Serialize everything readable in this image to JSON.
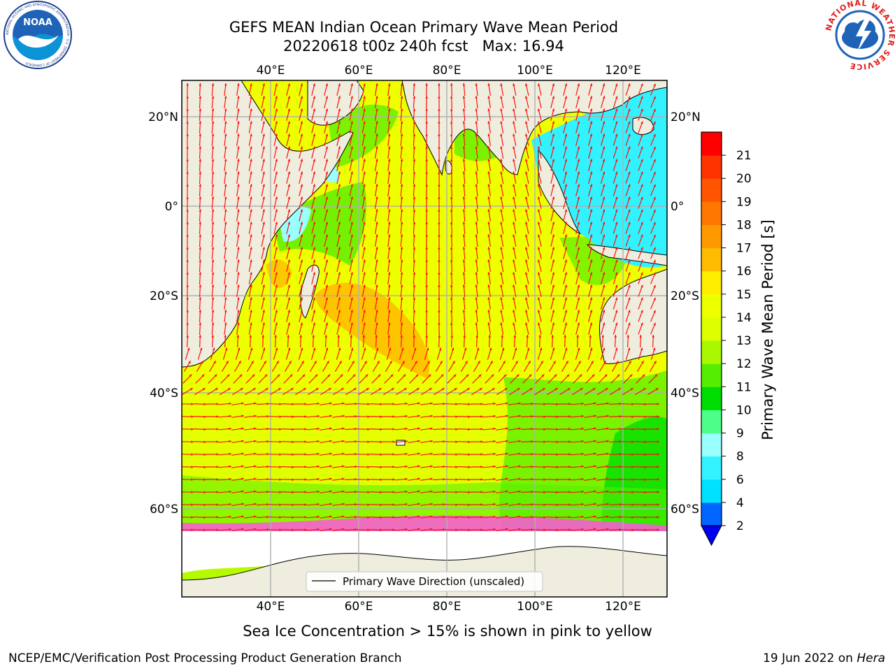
{
  "title": {
    "line1": "GEFS MEAN Indian Ocean Primary Wave Mean Period",
    "line2": "20220618 t00z 240h fcst   Max: 16.94"
  },
  "logos": {
    "left": {
      "icon": "noaa-logo",
      "text": "NOAA",
      "ring_text": "NATIONAL OCEANIC AND ATMOSPHERIC ADMINISTRATION · U.S. DEPARTMENT OF COMMERCE"
    },
    "right": {
      "icon": "nws-logo",
      "ring_text": "NATIONAL WEATHER SERVICE"
    }
  },
  "map": {
    "region": "Indian Ocean",
    "lon_range": [
      21,
      131
    ],
    "lat_range": [
      -77,
      28
    ],
    "lon_ticks": [
      40,
      60,
      80,
      100,
      120
    ],
    "lon_tick_labels": [
      "40°E",
      "60°E",
      "80°E",
      "100°E",
      "120°E"
    ],
    "lat_ticks": [
      20,
      0,
      -20,
      -40,
      -60
    ],
    "lat_tick_labels": [
      "20°N",
      "0°",
      "20°S",
      "40°S",
      "60°S"
    ],
    "grid": true,
    "legend": {
      "label": "Primary Wave Direction (unscaled)",
      "position": "bottom-center"
    },
    "ocean_mean_period_field": "color-filled",
    "land_color": "#efedde",
    "arrow_color": "#ff1010"
  },
  "colorbar": {
    "label": "Primary Wave Mean Period [s]",
    "ticks": [
      "2",
      "4",
      "6",
      "8",
      "9",
      "10",
      "11",
      "12",
      "13",
      "14",
      "15",
      "16",
      "17",
      "18",
      "19",
      "20",
      "21"
    ],
    "colors": [
      "#0066ff",
      "#00e1ff",
      "#33f2ff",
      "#99ffff",
      "#4dff88",
      "#00dd00",
      "#55ee00",
      "#aaf800",
      "#ddff00",
      "#eeff00",
      "#ffee00",
      "#ffbb00",
      "#ff9900",
      "#ff7700",
      "#ff5500",
      "#ff3300",
      "#ff0000"
    ],
    "extend": "min",
    "extend_color": "#0000ee"
  },
  "notes": {
    "ice": "Sea Ice Concentration > 15% is shown in pink to yellow",
    "footer_left": "NCEP/EMC/Verification Post Processing Product Generation Branch",
    "footer_date": "19 Jun 2022 on ",
    "footer_host": "Hera"
  }
}
